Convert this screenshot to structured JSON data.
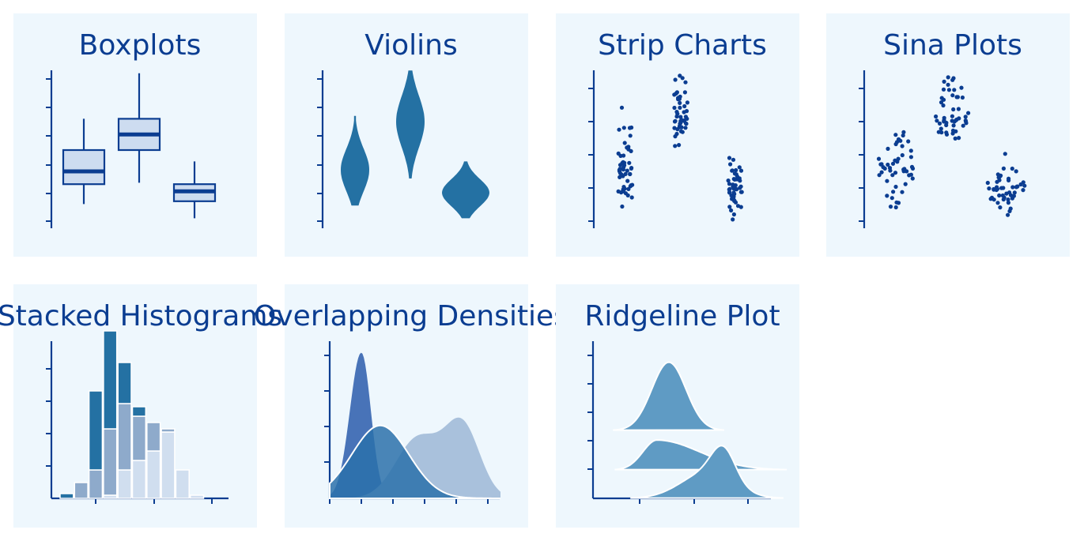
{
  "colors": {
    "panel_bg": "#eef7fd",
    "primary": "#0b3d91",
    "box_fill": "#cddcf0",
    "violin": "#2471a3",
    "point": "#0b3d91",
    "hist_1": "#2471a3",
    "hist_2": "#8eaacb",
    "hist_3": "#d0deef",
    "density_1": "#4873b8",
    "density_2": "#2c71aa",
    "density_3": "#a9c1dc",
    "ridge": "#5f9bc4"
  },
  "chart_data": [
    {
      "type": "boxplot",
      "title": "Boxplots",
      "grid": false,
      "boxes": [
        {
          "whisker_low": 0.6,
          "q1": 1.3,
          "median": 1.75,
          "q3": 2.5,
          "whisker_high": 3.6
        },
        {
          "whisker_low": 1.35,
          "q1": 2.5,
          "median": 3.05,
          "q3": 3.6,
          "whisker_high": 5.2
        },
        {
          "whisker_low": 0.1,
          "q1": 0.7,
          "median": 1.05,
          "q3": 1.3,
          "whisker_high": 2.1
        }
      ]
    },
    {
      "type": "violin",
      "title": "Violins",
      "grid": false,
      "violins": [
        {
          "min": 0.55,
          "max": 3.7,
          "center": 1.8,
          "width": 0.45
        },
        {
          "min": 1.5,
          "max": 5.3,
          "center": 3.5,
          "width": 0.45
        },
        {
          "min": 0.1,
          "max": 2.1,
          "center": 1.0,
          "width": 0.75
        }
      ]
    },
    {
      "type": "strip",
      "title": "Strip Charts",
      "grid": false,
      "groups": [
        {
          "center": 1.65,
          "min": 0.35,
          "max": 3.55,
          "n": 50
        },
        {
          "center": 3.15,
          "min": 1.35,
          "max": 4.35,
          "n": 50
        },
        {
          "center": 1.0,
          "min": 0.05,
          "max": 2.1,
          "n": 50
        }
      ]
    },
    {
      "type": "scatter",
      "subtype": "sina",
      "title": "Sina Plots",
      "grid": false,
      "groups": [
        {
          "center": 1.65,
          "min": 0.35,
          "max": 3.55,
          "n": 50
        },
        {
          "center": 3.15,
          "min": 1.35,
          "max": 4.35,
          "n": 50
        },
        {
          "center": 1.0,
          "min": 0.05,
          "max": 2.1,
          "n": 50
        }
      ]
    },
    {
      "type": "bar",
      "subtype": "stacked-histogram",
      "title": "Stacked Histograms",
      "grid": false,
      "x_start": -0.5,
      "bin_width": 0.25,
      "series": [
        {
          "values": [
            0.15,
            0,
            2.5,
            3.1,
            1.3,
            0.3,
            0,
            0,
            0,
            0,
            0,
            0
          ]
        },
        {
          "values": [
            0,
            0.5,
            0.9,
            2.1,
            2.1,
            1.4,
            0.9,
            0.1,
            0,
            0,
            0,
            0
          ]
        },
        {
          "values": [
            0,
            0,
            0,
            0.1,
            0.9,
            1.2,
            1.5,
            2.1,
            0.9,
            0.1,
            0,
            0
          ]
        }
      ]
    },
    {
      "type": "area",
      "subtype": "overlapping-density",
      "title": "Overlapping Densities",
      "grid": false,
      "series": [
        {
          "mean": 1.0,
          "sd": 0.36,
          "peak": 4.1
        },
        {
          "mean": 1.6,
          "sd": 0.9,
          "peak": 2.05
        },
        {
          "mean": 3.3,
          "sd": 1.05,
          "peak": 2.0
        }
      ]
    },
    {
      "type": "area",
      "subtype": "ridgeline",
      "title": "Ridgeline Plot",
      "grid": false,
      "ridges": [
        {
          "mean": 1.6,
          "sd": 0.36,
          "peak": 2.4,
          "baseline": 2.0
        },
        {
          "mean": 2.2,
          "sd": 0.8,
          "peak": 1.0,
          "baseline": 1.0
        },
        {
          "mean": 3.5,
          "sd": 0.7,
          "peak": 1.05,
          "baseline": 0.0
        }
      ]
    }
  ]
}
